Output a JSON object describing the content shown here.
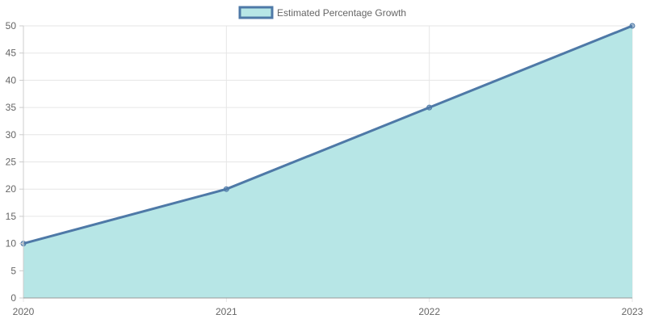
{
  "chart_data": {
    "type": "area",
    "categories": [
      "2020",
      "2021",
      "2022",
      "2023"
    ],
    "series": [
      {
        "name": "Estimated Percentage Growth",
        "values": [
          10,
          20,
          35,
          50
        ]
      }
    ],
    "ylim": [
      0,
      50
    ],
    "y_ticks": [
      0,
      5,
      10,
      15,
      20,
      25,
      30,
      35,
      40,
      45,
      50
    ],
    "grid": true,
    "legend_position": "top-center",
    "colors": {
      "line": "#4e79a7",
      "fill": "#b7e6e6",
      "grid": "#e6e6e6",
      "axis": "#999999",
      "text": "#666666"
    }
  }
}
